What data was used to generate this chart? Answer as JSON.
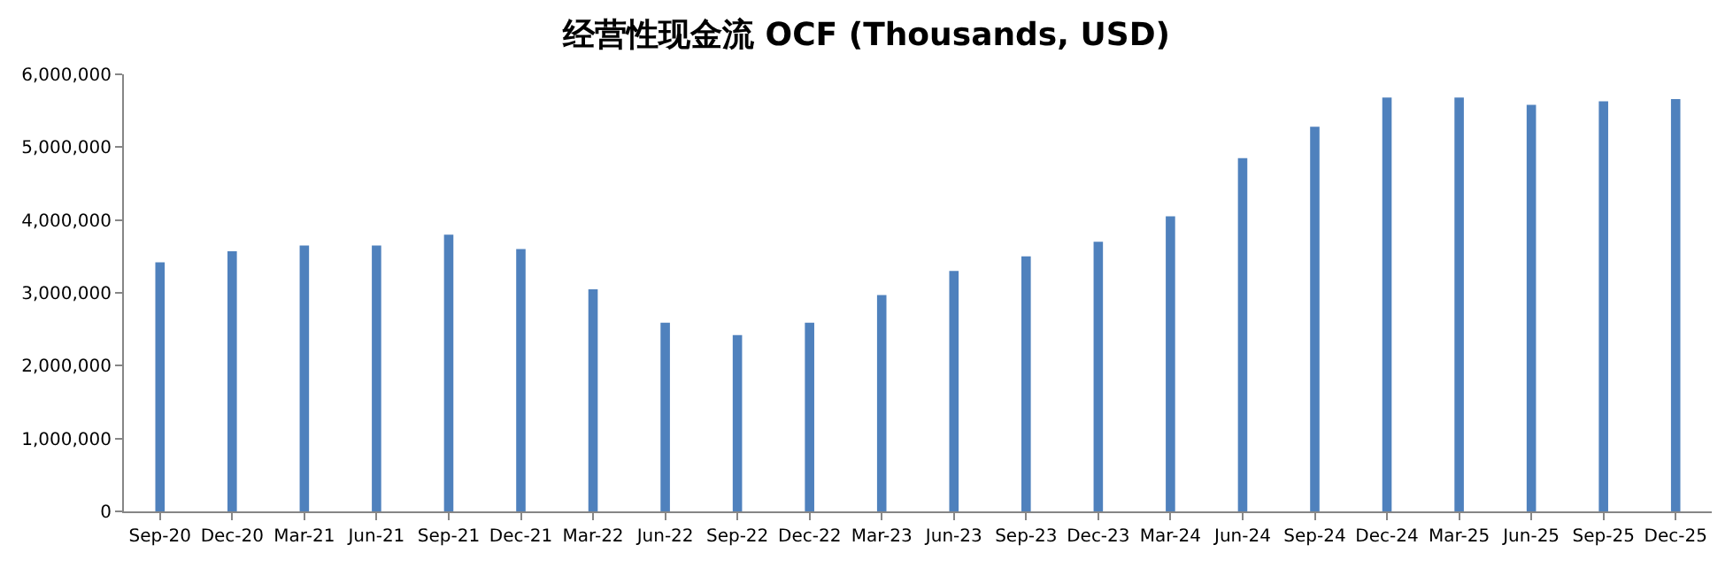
{
  "chart_data": {
    "type": "bar",
    "title": "经营性现金流 OCF (Thousands, USD)",
    "categories": [
      "Sep-20",
      "Dec-20",
      "Mar-21",
      "Jun-21",
      "Sep-21",
      "Dec-21",
      "Mar-22",
      "Jun-22",
      "Sep-22",
      "Dec-22",
      "Mar-23",
      "Jun-23",
      "Sep-23",
      "Dec-23",
      "Mar-24",
      "Jun-24",
      "Sep-24",
      "Dec-24",
      "Mar-25",
      "Jun-25",
      "Sep-25",
      "Dec-25"
    ],
    "values": [
      3420000,
      3570000,
      3650000,
      3650000,
      3800000,
      3600000,
      3050000,
      2590000,
      2420000,
      2590000,
      2970000,
      3300000,
      3500000,
      3700000,
      4050000,
      4850000,
      5280000,
      5680000,
      5680000,
      5580000,
      5630000,
      5660000
    ],
    "color": "#4f81bd",
    "ylim": [
      0,
      6000000
    ],
    "yticks": [
      {
        "value": 0,
        "label": "0"
      },
      {
        "value": 1000000,
        "label": "1,000,000"
      },
      {
        "value": 2000000,
        "label": "2,000,000"
      },
      {
        "value": 3000000,
        "label": "3,000,000"
      },
      {
        "value": 4000000,
        "label": "4,000,000"
      },
      {
        "value": 5000000,
        "label": "5,000,000"
      },
      {
        "value": 6000000,
        "label": "6,000,000"
      }
    ]
  }
}
